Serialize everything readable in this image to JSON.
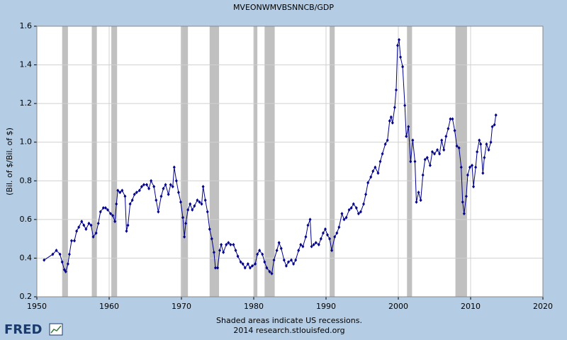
{
  "chart_data": {
    "type": "line",
    "title": "MVEONWMVBSNNCB/GDP",
    "y_label": "(Bil. of $/Bil. of $)",
    "footer": [
      "Shaded areas indicate US recessions.",
      "2014 research.stlouisfed.org"
    ],
    "logo": "FRED",
    "xlim": [
      1950,
      2020
    ],
    "xticks": [
      1950,
      1960,
      1970,
      1980,
      1990,
      2000,
      2010,
      2020
    ],
    "ylim": [
      0.2,
      1.6
    ],
    "yticks": [
      0.2,
      0.4,
      0.6,
      0.8,
      {
        "value": 1,
        "label": "1.0"
      },
      1.2,
      1.4,
      1.6
    ],
    "grid": true,
    "recession_color": "#c0c0c0",
    "recessions": [
      [
        1953.5,
        1954.3
      ],
      [
        1957.6,
        1958.3
      ],
      [
        1960.3,
        1961.1
      ],
      [
        1969.9,
        1970.9
      ],
      [
        1973.9,
        1975.2
      ],
      [
        1980.0,
        1980.5
      ],
      [
        1981.5,
        1982.9
      ],
      [
        1990.5,
        1991.2
      ],
      [
        2001.2,
        2001.9
      ],
      [
        2007.9,
        2009.5
      ]
    ],
    "series": [
      {
        "color": "#00008b",
        "x": [
          1951.0,
          1952.2,
          1952.7,
          1953.2,
          1953.5,
          1953.8,
          1954.0,
          1954.3,
          1954.5,
          1954.8,
          1955.2,
          1955.5,
          1955.8,
          1956.2,
          1956.5,
          1956.8,
          1957.2,
          1957.5,
          1957.8,
          1958.2,
          1958.5,
          1958.8,
          1959.2,
          1959.5,
          1959.8,
          1960.2,
          1960.5,
          1960.8,
          1961.0,
          1961.2,
          1961.5,
          1961.8,
          1962.2,
          1962.4,
          1962.6,
          1962.9,
          1963.2,
          1963.5,
          1963.8,
          1964.2,
          1964.5,
          1964.8,
          1965.2,
          1965.5,
          1965.8,
          1966.2,
          1966.5,
          1966.8,
          1967.2,
          1967.5,
          1967.8,
          1968.2,
          1968.5,
          1968.8,
          1969.0,
          1969.3,
          1969.6,
          1969.9,
          1970.2,
          1970.4,
          1970.6,
          1970.9,
          1971.2,
          1971.5,
          1971.8,
          1972.2,
          1972.5,
          1972.8,
          1973.0,
          1973.3,
          1973.6,
          1973.9,
          1974.2,
          1974.5,
          1974.7,
          1975.0,
          1975.3,
          1975.5,
          1975.8,
          1976.2,
          1976.5,
          1976.8,
          1977.2,
          1977.5,
          1977.8,
          1978.2,
          1978.5,
          1978.8,
          1979.2,
          1979.5,
          1979.8,
          1980.2,
          1980.5,
          1980.8,
          1981.2,
          1981.5,
          1981.8,
          1982.2,
          1982.5,
          1982.8,
          1983.2,
          1983.5,
          1983.8,
          1984.2,
          1984.5,
          1984.8,
          1985.2,
          1985.5,
          1985.8,
          1986.2,
          1986.5,
          1986.8,
          1987.2,
          1987.5,
          1987.8,
          1988.0,
          1988.3,
          1988.6,
          1989.0,
          1989.3,
          1989.6,
          1989.9,
          1990.2,
          1990.5,
          1990.8,
          1991.2,
          1991.5,
          1991.8,
          1992.2,
          1992.5,
          1992.8,
          1993.2,
          1993.5,
          1993.8,
          1994.2,
          1994.5,
          1994.8,
          1995.2,
          1995.5,
          1995.8,
          1996.2,
          1996.5,
          1996.8,
          1997.2,
          1997.5,
          1997.8,
          1998.2,
          1998.5,
          1998.8,
          1999.0,
          1999.2,
          1999.5,
          1999.7,
          1999.9,
          2000.1,
          2000.3,
          2000.6,
          2000.9,
          2001.1,
          2001.4,
          2001.7,
          2002.0,
          2002.3,
          2002.5,
          2002.8,
          2003.1,
          2003.4,
          2003.7,
          2004.0,
          2004.4,
          2004.7,
          2005.0,
          2005.4,
          2005.7,
          2006.0,
          2006.3,
          2006.6,
          2006.9,
          2007.2,
          2007.5,
          2007.8,
          2008.1,
          2008.4,
          2008.7,
          2008.9,
          2009.1,
          2009.4,
          2009.6,
          2009.9,
          2010.2,
          2010.4,
          2010.7,
          2010.9,
          2011.2,
          2011.4,
          2011.7,
          2011.9,
          2012.2,
          2012.5,
          2012.8,
          2013.0,
          2013.3,
          2013.5
        ],
        "values": [
          0.39,
          0.42,
          0.44,
          0.42,
          0.38,
          0.34,
          0.33,
          0.37,
          0.42,
          0.49,
          0.49,
          0.54,
          0.56,
          0.59,
          0.57,
          0.55,
          0.58,
          0.57,
          0.51,
          0.53,
          0.58,
          0.64,
          0.66,
          0.66,
          0.65,
          0.63,
          0.62,
          0.59,
          0.68,
          0.75,
          0.74,
          0.75,
          0.72,
          0.54,
          0.57,
          0.68,
          0.7,
          0.73,
          0.74,
          0.75,
          0.77,
          0.78,
          0.78,
          0.76,
          0.8,
          0.77,
          0.7,
          0.64,
          0.72,
          0.76,
          0.78,
          0.73,
          0.78,
          0.77,
          0.87,
          0.8,
          0.74,
          0.69,
          0.61,
          0.51,
          0.58,
          0.65,
          0.68,
          0.65,
          0.67,
          0.7,
          0.69,
          0.68,
          0.77,
          0.7,
          0.64,
          0.55,
          0.5,
          0.43,
          0.35,
          0.35,
          0.44,
          0.47,
          0.43,
          0.47,
          0.48,
          0.47,
          0.47,
          0.44,
          0.41,
          0.38,
          0.37,
          0.35,
          0.37,
          0.35,
          0.36,
          0.37,
          0.42,
          0.44,
          0.42,
          0.38,
          0.35,
          0.33,
          0.32,
          0.39,
          0.44,
          0.48,
          0.45,
          0.39,
          0.36,
          0.38,
          0.39,
          0.37,
          0.39,
          0.44,
          0.47,
          0.46,
          0.51,
          0.57,
          0.6,
          0.46,
          0.47,
          0.48,
          0.47,
          0.5,
          0.53,
          0.55,
          0.52,
          0.5,
          0.44,
          0.51,
          0.53,
          0.56,
          0.63,
          0.6,
          0.61,
          0.65,
          0.66,
          0.68,
          0.66,
          0.63,
          0.64,
          0.68,
          0.73,
          0.79,
          0.82,
          0.85,
          0.87,
          0.84,
          0.9,
          0.94,
          0.99,
          1.01,
          1.11,
          1.13,
          1.1,
          1.18,
          1.27,
          1.5,
          1.53,
          1.44,
          1.39,
          1.19,
          1.03,
          1.08,
          0.9,
          1.01,
          0.9,
          0.69,
          0.74,
          0.7,
          0.83,
          0.91,
          0.92,
          0.88,
          0.95,
          0.94,
          0.96,
          0.94,
          1.01,
          0.96,
          1.03,
          1.07,
          1.12,
          1.12,
          1.06,
          0.98,
          0.97,
          0.87,
          0.69,
          0.63,
          0.72,
          0.83,
          0.87,
          0.88,
          0.77,
          0.87,
          0.95,
          1.01,
          0.99,
          0.84,
          0.92,
          0.99,
          0.96,
          1.0,
          1.08,
          1.09,
          1.14
        ]
      }
    ]
  }
}
